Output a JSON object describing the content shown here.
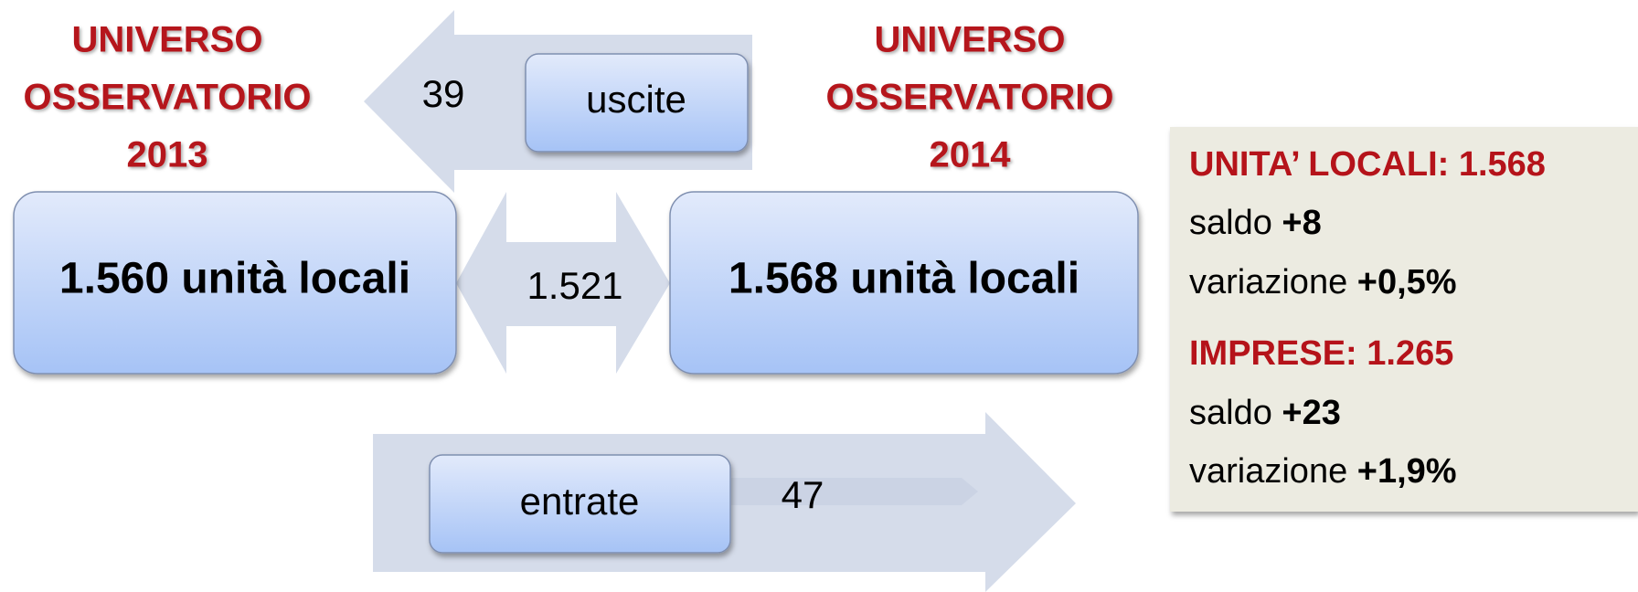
{
  "left_heading": {
    "lines": [
      "UNIVERSO",
      "OSSERVATORIO",
      "2013"
    ]
  },
  "right_heading": {
    "lines": [
      "UNIVERSO",
      "OSSERVATORIO",
      "2014"
    ]
  },
  "exits": {
    "count": "39",
    "label": "uscite"
  },
  "left_box": {
    "label": "1.560 unità locali"
  },
  "stayers": {
    "count": "1.521"
  },
  "right_box": {
    "label": "1.568 unità locali"
  },
  "entries": {
    "label": "entrate",
    "count": "47"
  },
  "summary": {
    "local_units": {
      "title": "UNITA’ LOCALI: 1.568",
      "balance_label": "saldo",
      "balance": "+8",
      "change_label": "variazione",
      "change": "+0,5%"
    },
    "companies": {
      "title": "IMPRESE: 1.265",
      "balance_label": "saldo",
      "balance": "+23",
      "change_label": "variazione",
      "change": "+1,9%"
    }
  }
}
